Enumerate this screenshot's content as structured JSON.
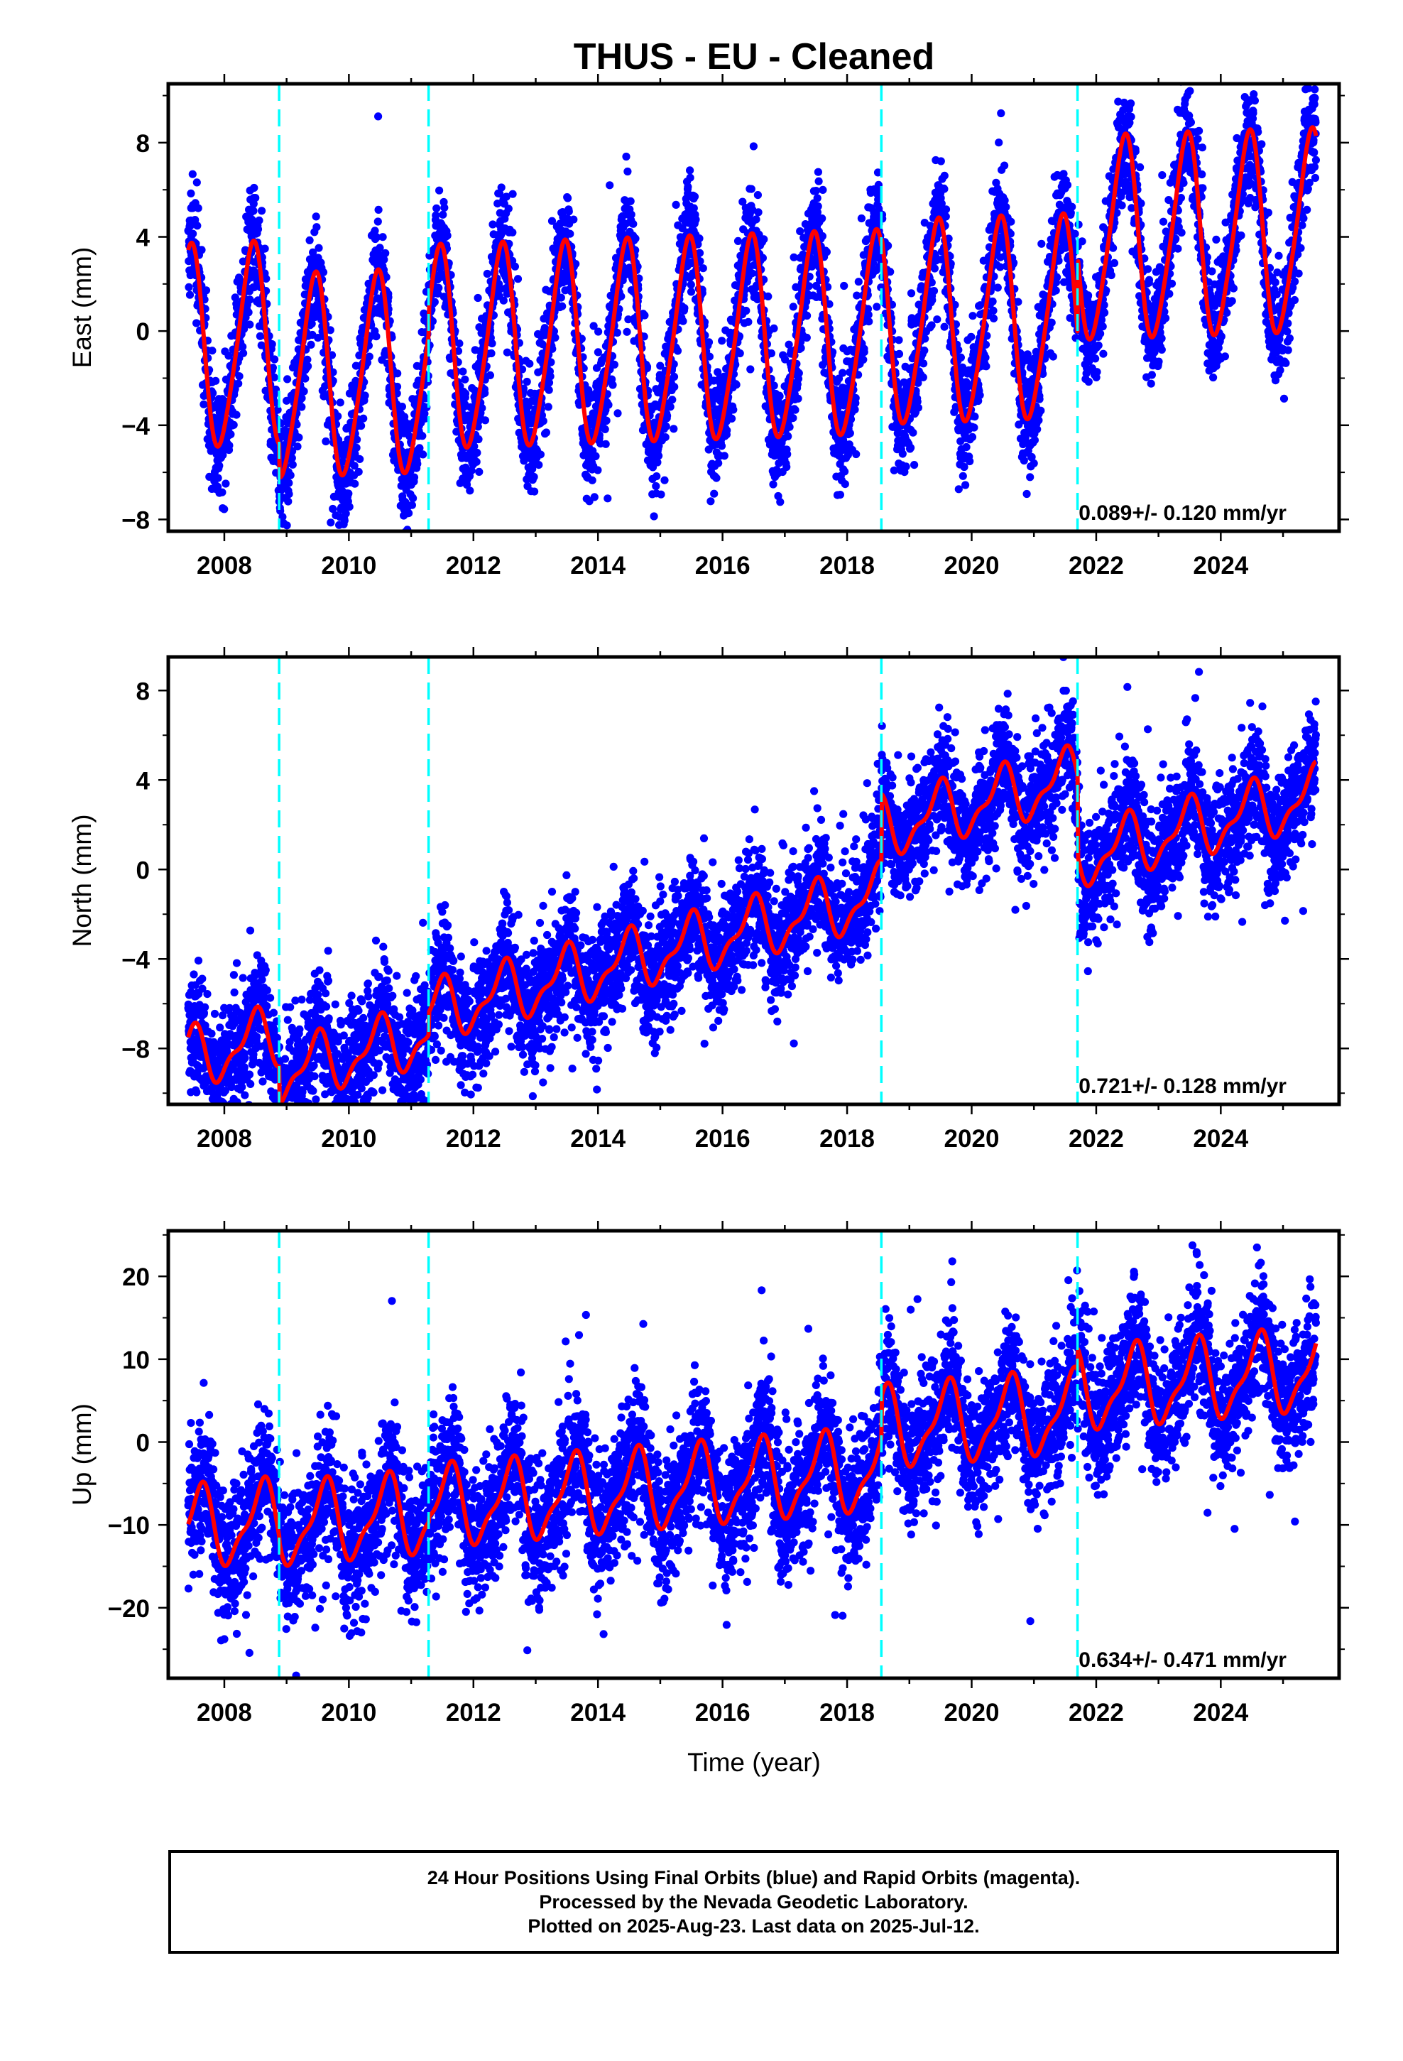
{
  "chart_data": {
    "title": "THUS  - EU - Cleaned",
    "xlabel": "Time (year)",
    "x_tick_labels": [
      "2008",
      "2010",
      "2012",
      "2014",
      "2016",
      "2018",
      "2020",
      "2022",
      "2024"
    ],
    "xlim": [
      2007.1,
      2025.9
    ],
    "event_lines": [
      2008.88,
      2011.28,
      2018.55,
      2021.7
    ],
    "colors": {
      "data": "#0000ff",
      "fit": "#ff0000",
      "event_line": "#00ffff",
      "frame": "#000000"
    },
    "panels": [
      {
        "type": "scatter",
        "name": "east",
        "ylabel": "East (mm)",
        "ylim": [
          -8.5,
          10.5
        ],
        "y_ticks": [
          -8,
          -4,
          0,
          4,
          8
        ],
        "y_tick_labels": [
          "−8",
          "−4",
          "0",
          "4",
          "8"
        ],
        "rate_text": "0.089+/- 0.120 mm/yr",
        "model": {
          "offsets": [
            0.0,
            -1.4,
            -0.4,
            0.0,
            3.3
          ],
          "trend": 0.089,
          "amp": 4.2,
          "semi": 0.6,
          "phase": 0.44,
          "noise": 1.2
        }
      },
      {
        "type": "scatter",
        "name": "north",
        "ylabel": "North (mm)",
        "ylim": [
          -10.5,
          9.5
        ],
        "y_ticks": [
          -8,
          -4,
          0,
          4,
          8
        ],
        "y_tick_labels": [
          "−8",
          "−4",
          "0",
          "4",
          "8"
        ],
        "rate_text": "0.721+/- 0.128 mm/yr",
        "model": {
          "offsets": [
            -2.3,
            -4.0,
            -3.0,
            0.0,
            -3.6
          ],
          "trend": 0.721,
          "amp": 1.2,
          "semi": 0.5,
          "phase": 0.47,
          "noise": 1.3
        }
      },
      {
        "type": "scatter",
        "name": "up",
        "ylabel": "Up (mm)",
        "ylim": [
          -28.5,
          25.5
        ],
        "y_ticks": [
          -20,
          -10,
          0,
          10,
          20
        ],
        "y_tick_labels": [
          "−20",
          "−10",
          "0",
          "10",
          "20"
        ],
        "rate_text": "0.634+/- 0.471 mm/yr",
        "model": {
          "offsets": [
            -5.0,
            -5.6,
            -5.0,
            0.0,
            2.6
          ],
          "trend": 0.634,
          "amp": 4.5,
          "semi": 1.5,
          "phase": 0.6,
          "noise": 4.0
        }
      }
    ]
  },
  "footer": {
    "line1": "24 Hour Positions Using Final Orbits (blue) and Rapid Orbits (magenta).",
    "line2": "Processed by the Nevada Geodetic Laboratory.",
    "line3": "Plotted on 2025-Aug-23. Last data on 2025-Jul-12."
  }
}
